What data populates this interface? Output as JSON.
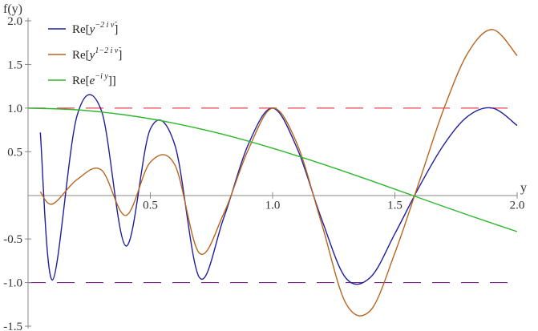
{
  "chart_data": {
    "type": "line",
    "xlabel": "y",
    "ylabel": "f(y)",
    "xlim": [
      0,
      2.0
    ],
    "ylim": [
      -1.5,
      2.0
    ],
    "x_ticks": [
      0.5,
      1.0,
      1.5,
      2.0
    ],
    "x_tick_labels": [
      "0.5",
      "1.0",
      "1.5",
      "2.0"
    ],
    "y_ticks": [
      -1.5,
      -1.0,
      -0.5,
      0.5,
      1.0,
      1.5,
      2.0
    ],
    "y_tick_labels": [
      "-1.5",
      "-1.0",
      "-0.5",
      "0.5",
      "1.0",
      "1.5",
      "2.0"
    ],
    "legend_position": "top-left",
    "series": [
      {
        "legend_prefix": "Re[",
        "legend_base": "y",
        "legend_exponent": "−2 i ν̃",
        "legend_suffix": "]",
        "color": "#1f1f9e",
        "x": [
          0.05,
          0.1,
          0.2,
          0.3,
          0.4,
          0.5,
          0.6,
          0.7,
          0.8,
          0.9,
          1.0,
          1.1,
          1.2,
          1.3,
          1.4,
          1.5,
          1.6,
          1.7,
          1.8,
          1.9,
          2.0
        ],
        "y": [
          0.72,
          -0.97,
          0.91,
          0.97,
          -0.58,
          0.76,
          0.58,
          -0.94,
          -0.26,
          0.58,
          1.0,
          0.54,
          -0.27,
          -0.95,
          -0.94,
          -0.44,
          0.1,
          0.58,
          0.91,
          1.0,
          0.8
        ]
      },
      {
        "legend_prefix": "Re[",
        "legend_base": "y",
        "legend_exponent": "1−2 i ν̃",
        "legend_suffix": "]",
        "color": "#b8651e",
        "x": [
          0.05,
          0.1,
          0.2,
          0.3,
          0.4,
          0.5,
          0.6,
          0.7,
          0.8,
          0.9,
          1.0,
          1.1,
          1.2,
          1.3,
          1.4,
          1.5,
          1.6,
          1.7,
          1.8,
          1.9,
          2.0
        ],
        "y": [
          0.04,
          -0.1,
          0.18,
          0.29,
          -0.23,
          0.38,
          0.35,
          -0.66,
          -0.21,
          0.52,
          1.0,
          0.59,
          -0.32,
          -1.24,
          -1.32,
          -0.66,
          0.16,
          0.99,
          1.64,
          1.9,
          1.6
        ]
      },
      {
        "legend_prefix": "Re[",
        "legend_base": "e",
        "legend_exponent": "−i y",
        "legend_suffix": "]]",
        "color": "#2db82d",
        "x": [
          0.0,
          0.2,
          0.4,
          0.6,
          0.8,
          1.0,
          1.2,
          1.4,
          1.6,
          1.8,
          2.0
        ],
        "y": [
          1.0,
          0.98,
          0.921,
          0.825,
          0.697,
          0.54,
          0.362,
          0.17,
          -0.029,
          -0.227,
          -0.416
        ]
      }
    ],
    "reference_lines": [
      {
        "y": 1.0,
        "color": "#e8454f",
        "style": "dashed"
      },
      {
        "y": -1.0,
        "color": "#7a2a8c",
        "style": "dashed"
      }
    ]
  }
}
